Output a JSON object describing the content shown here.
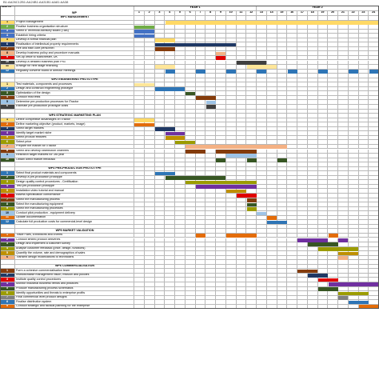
{
  "formula": "B1:AA26C12B1:AA24B1:AA31B1:AA81:AA38",
  "header": {
    "task_no": "Task Nr",
    "wp": "WP",
    "year1": "YEAR 1",
    "year2": "YEAR 2",
    "months": [
      "1",
      "2",
      "3",
      "4",
      "5",
      "6",
      "7",
      "8",
      "9",
      "10",
      "11",
      "12",
      "13",
      "14",
      "15",
      "16",
      "17",
      "18",
      "19",
      "20",
      "21",
      "22",
      "23",
      "24"
    ]
  },
  "colors": {
    "yellow": "#ffd966",
    "green": "#70ad47",
    "blue": "#4472c4",
    "orange": "#e36c09",
    "red": "#e00000",
    "purple": "#7030a0",
    "olive": "#9c9c00",
    "navy": "#1f3864",
    "grey": "#808080",
    "peach": "#f4b183",
    "lightblue": "#9dc3e6",
    "darkgreen": "#375623",
    "brown": "#843c0c",
    "teal": "#2e75b6",
    "gold": "#bf9000",
    "darkgrey": "#404040",
    "lightyellow": "#ffe699",
    "pink": "#e06666"
  },
  "rows": [
    {
      "kind": "wp",
      "label": "WP1 MANAGEMENT"
    },
    {
      "no": "1",
      "label": "Project Management",
      "color": "yellow",
      "bars": [
        [
          4,
          24
        ]
      ]
    },
    {
      "no": "2",
      "label": "Finalise business organisation structure",
      "color": "green",
      "bars": [
        [
          1,
          2
        ]
      ]
    },
    {
      "no": "3",
      "label": "Select a Technical Advisory Board (TAB)",
      "color": "blue",
      "bars": [
        [
          1,
          2
        ]
      ]
    },
    {
      "no": "4",
      "label": "Establish hiring criteria",
      "color": "blue",
      "bars": [
        [
          1,
          2
        ]
      ]
    },
    {
      "no": "5",
      "label": "Develop a formal financial plan",
      "color": "yellow",
      "bars": [
        [
          3,
          4
        ]
      ]
    },
    {
      "no": "6",
      "label": "Finalisation of intellectual property requirements",
      "color": "navy",
      "bars": [
        [
          3,
          10
        ]
      ]
    },
    {
      "no": "7",
      "label": "Hire and train core personnel",
      "color": "brown",
      "bars": [
        [
          3,
          4
        ]
      ]
    },
    {
      "no": "8",
      "label": "Develop business policy and procedure manuals",
      "color": "peach",
      "bars": [
        [
          9,
          9
        ]
      ]
    },
    {
      "no": "9",
      "label": "Set-up office to Manchester, UK",
      "color": "red",
      "bars": [
        [
          9,
          9
        ]
      ]
    },
    {
      "no": "10",
      "label": "Develop a detailed business plan Ph3",
      "color": "darkgrey",
      "bars": [
        [
          11,
          13
        ]
      ]
    },
    {
      "no": "11",
      "label": "Arrange for next stage financing",
      "color": "lightyellow",
      "bars": [
        [
          3,
          4
        ],
        [
          12,
          14
        ]
      ]
    },
    {
      "no": "12",
      "label": "Regularly convene board of director meetings",
      "color": "teal",
      "bars": [
        [
          4,
          4
        ],
        [
          7,
          7
        ],
        [
          10,
          10
        ],
        [
          13,
          13
        ],
        [
          16,
          16
        ],
        [
          19,
          19
        ],
        [
          22,
          22
        ],
        [
          24,
          24
        ]
      ]
    },
    {
      "kind": "blank"
    },
    {
      "kind": "wp",
      "label": "WP2 ENGINEERING PROTOTYPE"
    },
    {
      "no": "1",
      "label": "Test materials, components and processes",
      "color": "lightyellow",
      "bars": [
        [
          1,
          2
        ]
      ]
    },
    {
      "no": "2",
      "label": "Design and construct engineering prototype",
      "color": "teal",
      "bars": [
        [
          3,
          5
        ]
      ]
    },
    {
      "no": "3",
      "label": "Optimization of the design",
      "color": "darkgreen",
      "bars": [
        [
          6,
          6
        ]
      ]
    },
    {
      "no": "4",
      "label": "Conduct final tests",
      "color": "brown",
      "bars": [
        [
          7,
          8
        ]
      ]
    },
    {
      "no": "5",
      "label": "Determine pre-production processes for  iTractor",
      "color": "lightblue",
      "bars": [
        [
          8,
          8
        ]
      ]
    },
    {
      "no": "6",
      "label": "Estimate pre-production prototype costs",
      "color": "darkgrey",
      "bars": [
        [
          8,
          8
        ]
      ]
    },
    {
      "kind": "blank"
    },
    {
      "kind": "wp",
      "label": "WP3 STRATEGIC MARKETING PLAN"
    },
    {
      "no": "1",
      "label": "Define competitive advantages of iTractor",
      "color": "yellow",
      "bars": [
        [
          1,
          2
        ]
      ]
    },
    {
      "no": "2",
      "label": "Define marketing objective (product, markets, image)",
      "color": "orange",
      "bars": [
        [
          1,
          2
        ]
      ]
    },
    {
      "no": "3",
      "label": "Select target markets",
      "color": "navy",
      "bars": [
        [
          3,
          4
        ]
      ]
    },
    {
      "no": "4",
      "label": "Identify target market niche",
      "color": "purple",
      "bars": [
        [
          4,
          5
        ]
      ]
    },
    {
      "no": "5",
      "label": "Select product features",
      "color": "gold",
      "bars": [
        [
          4,
          5
        ]
      ]
    },
    {
      "no": "6",
      "label": "Select price",
      "color": "olive",
      "bars": [
        [
          5,
          6
        ]
      ]
    },
    {
      "no": "7",
      "label": "Prepare the market for iTractor",
      "color": "peach",
      "bars": [
        [
          6,
          15
        ]
      ]
    },
    {
      "no": "8",
      "label": "Select and develop distribution channels",
      "color": "brown",
      "bars": [
        [
          6,
          7
        ],
        [
          9,
          12
        ]
      ]
    },
    {
      "no": "9",
      "label": "Research target markets for 3rd year",
      "color": "lightblue",
      "bars": [
        [
          10,
          12
        ]
      ]
    },
    {
      "no": "10",
      "label": "Obtain direct market feedback",
      "color": "darkgreen",
      "bars": [
        [
          9,
          9
        ],
        [
          12,
          12
        ],
        [
          15,
          15
        ]
      ]
    },
    {
      "kind": "blank"
    },
    {
      "kind": "wp",
      "label": "WP4 PRE-PRODUCTION PROTOTYPE"
    },
    {
      "no": "1",
      "label": "Select final product materials and components",
      "color": "teal",
      "bars": [
        [
          3,
          4
        ]
      ]
    },
    {
      "no": "2",
      "label": "Develop a pre-production prototype",
      "color": "darkgreen",
      "bars": [
        [
          4,
          9
        ]
      ]
    },
    {
      "no": "3",
      "label": "Design quality control procedures - Certification",
      "color": "olive",
      "bars": [
        [
          6,
          12
        ]
      ]
    },
    {
      "no": "4",
      "label": "Test pre-production prototype",
      "color": "purple",
      "bars": [
        [
          7,
          12
        ]
      ]
    },
    {
      "no": "5",
      "label": "Installation video tutorial and manual",
      "color": "gold",
      "bars": [
        [
          10,
          11
        ]
      ]
    },
    {
      "no": "6",
      "label": "Assess specification conformance",
      "color": "red",
      "bars": [
        [
          11,
          12
        ]
      ]
    },
    {
      "no": "7",
      "label": "Select the manufacturing process",
      "color": "brown",
      "bars": [
        [
          12,
          12
        ]
      ]
    },
    {
      "no": "8",
      "label": "Select the manufacturing equipment",
      "color": "darkgreen",
      "bars": [
        [
          12,
          12
        ]
      ]
    },
    {
      "no": "9",
      "label": "Select the manufacturing processes",
      "color": "olive",
      "bars": [
        [
          12,
          12
        ]
      ]
    },
    {
      "no": "10",
      "label": "Conduct pilot production - equipment delivery",
      "color": "lightblue",
      "bars": [
        [
          13,
          13
        ]
      ]
    },
    {
      "no": "11",
      "label": "Update documentation",
      "color": "orange",
      "bars": [
        [
          14,
          14
        ]
      ]
    },
    {
      "no": "12",
      "label": "Calculate full production costs for commercial-level design",
      "color": "teal",
      "bars": [
        [
          14,
          15
        ]
      ]
    },
    {
      "kind": "blank"
    },
    {
      "kind": "wp",
      "label": "WP5 MARKET VALIDATION"
    },
    {
      "no": "1",
      "label": "Trade Fairs, Exhibitions and Events",
      "color": "orange",
      "bars": [
        [
          7,
          7
        ],
        [
          10,
          12
        ],
        [
          20,
          20
        ]
      ]
    },
    {
      "no": "2",
      "label": "Conduct limited product deliveries",
      "color": "purple",
      "bars": [
        [
          17,
          19
        ],
        [
          21,
          21
        ]
      ]
    },
    {
      "no": "3",
      "label": "Design and implement a customer survey",
      "color": "darkgreen",
      "bars": [
        [
          18,
          20
        ]
      ]
    },
    {
      "no": "4",
      "label": "Analyse customer feedback (price, design, functions)",
      "color": "olive",
      "bars": [
        [
          19,
          22
        ]
      ]
    },
    {
      "no": "5",
      "label": "Quantify the volume, rate and demographics of sales",
      "color": "gold",
      "bars": [
        [
          21,
          22
        ]
      ]
    },
    {
      "no": "6",
      "label": "Transmit design modifications to technicians",
      "color": "peach",
      "bars": [
        [
          21,
          21
        ]
      ]
    },
    {
      "kind": "blank"
    },
    {
      "kind": "wp",
      "label": "WP6 COMMERCIALISATION"
    },
    {
      "no": "1",
      "label": "Form a cohesive commercialisation team",
      "color": "brown",
      "bars": [
        [
          17,
          18
        ]
      ]
    },
    {
      "no": "2",
      "label": "Institutionalise management vision, mission and policies",
      "color": "navy",
      "bars": [
        [
          18,
          19
        ]
      ]
    },
    {
      "no": "3",
      "label": "Institute quality control procedures",
      "color": "red",
      "bars": [
        [
          19,
          20
        ]
      ]
    },
    {
      "no": "4",
      "label": "Monitor industrial business trends and practices",
      "color": "purple",
      "bars": [
        [
          20,
          24
        ]
      ]
    },
    {
      "no": "5",
      "label": "Produce manufacturing process schematics",
      "color": "darkgreen",
      "bars": [
        [
          19,
          20
        ]
      ]
    },
    {
      "no": "6",
      "label": "Identify opportunities and threats to enterprise profits",
      "color": "olive",
      "bars": [
        [
          21,
          23
        ]
      ]
    },
    {
      "no": "7",
      "label": "Final commercial level product designs",
      "color": "grey",
      "bars": [
        [
          21,
          21
        ]
      ]
    },
    {
      "no": "8",
      "label": "Finalise distribution system",
      "color": "teal",
      "bars": [
        [
          22,
          23
        ]
      ]
    },
    {
      "no": "9",
      "label": "Conduct strategic and tactical planning for the enterprise",
      "color": "orange",
      "bars": [
        [
          23,
          24
        ]
      ]
    }
  ]
}
